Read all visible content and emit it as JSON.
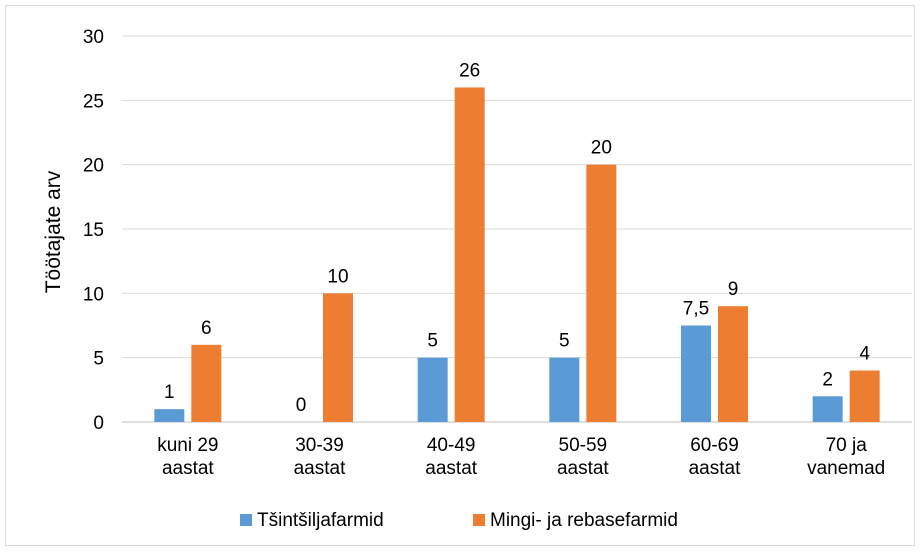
{
  "chart_data": {
    "type": "bar",
    "ylabel": "Töötajate arv",
    "ylim": [
      0,
      30
    ],
    "yticks": [
      0,
      5,
      10,
      15,
      20,
      25,
      30
    ],
    "ytick_labels": [
      "0",
      "5",
      "10",
      "15",
      "20",
      "25",
      "30"
    ],
    "grid": true,
    "legend_position": "bottom",
    "categories": [
      [
        "kuni 29",
        "aastat"
      ],
      [
        "30-39",
        "aastat"
      ],
      [
        "40-49",
        "aastat"
      ],
      [
        "50-59",
        "aastat"
      ],
      [
        "60-69",
        "aastat"
      ],
      [
        "70 ja",
        "vanemad"
      ]
    ],
    "series": [
      {
        "name": "Tšintšiljafarmid",
        "color": "#5b9bd5",
        "values": [
          1,
          0,
          5,
          5,
          7.5,
          2
        ],
        "labels": [
          "1",
          "0",
          "5",
          "5",
          "7,5",
          "2"
        ]
      },
      {
        "name": "Mingi- ja rebasefarmid",
        "color": "#ed7d31",
        "values": [
          6,
          10,
          26,
          20,
          9,
          4
        ],
        "labels": [
          "6",
          "10",
          "26",
          "20",
          "9",
          "4"
        ]
      }
    ]
  }
}
